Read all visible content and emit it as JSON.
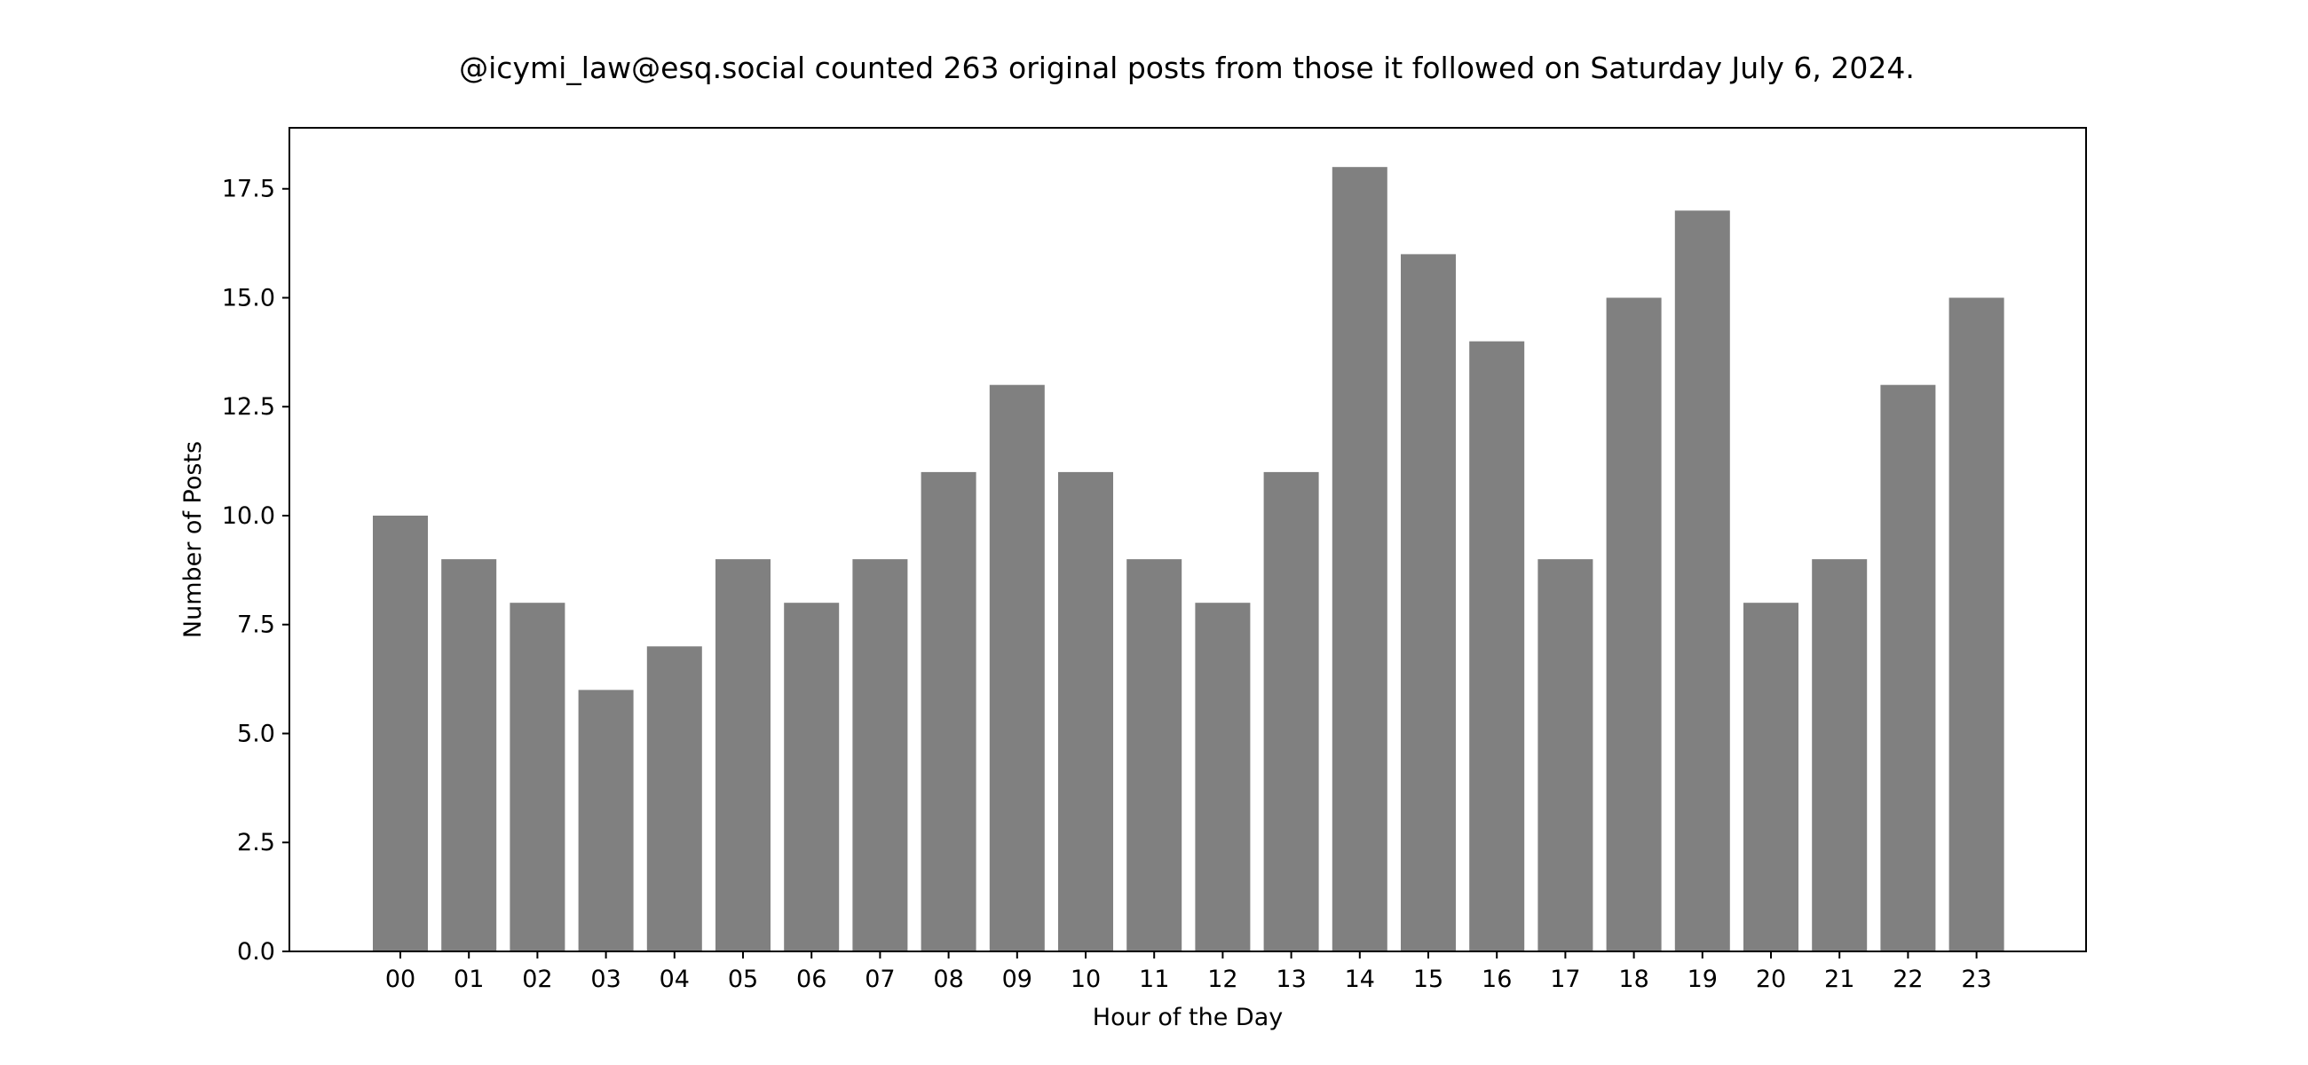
{
  "chart_data": {
    "type": "bar",
    "title": "@icymi_law@esq.social counted 263 original posts from those it followed on Saturday July 6, 2024.",
    "xlabel": "Hour of the Day",
    "ylabel": "Number of Posts",
    "categories": [
      "00",
      "01",
      "02",
      "03",
      "04",
      "05",
      "06",
      "07",
      "08",
      "09",
      "10",
      "11",
      "12",
      "13",
      "14",
      "15",
      "16",
      "17",
      "18",
      "19",
      "20",
      "21",
      "22",
      "23"
    ],
    "values": [
      10,
      9,
      8,
      6,
      7,
      9,
      8,
      9,
      11,
      13,
      11,
      9,
      8,
      11,
      18,
      16,
      14,
      9,
      15,
      17,
      8,
      9,
      13,
      15
    ],
    "ylim": [
      0,
      18.9
    ],
    "yticks": [
      "0.0",
      "2.5",
      "5.0",
      "7.5",
      "10.0",
      "12.5",
      "15.0",
      "17.5"
    ],
    "bar_color": "#808080",
    "grid": false,
    "legend": "none"
  }
}
